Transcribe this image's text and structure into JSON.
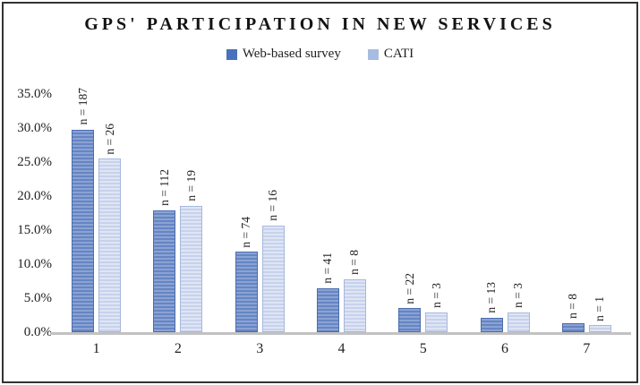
{
  "chart_data": {
    "type": "bar",
    "title": "GPS' PARTICIPATION IN NEW SERVICES",
    "categories": [
      "1",
      "2",
      "3",
      "4",
      "5",
      "6",
      "7"
    ],
    "series": [
      {
        "name": "Web-based survey",
        "values": [
          29.8,
          17.9,
          11.8,
          6.5,
          3.5,
          2.1,
          1.3
        ],
        "bar_labels": [
          "n = 187",
          "n = 112",
          "n = 74",
          "n = 41",
          "n = 22",
          "n = 13",
          "n = 8"
        ],
        "legend_color": "#4a72bc"
      },
      {
        "name": "CATI",
        "values": [
          25.5,
          18.6,
          15.7,
          7.8,
          2.9,
          2.9,
          1.0
        ],
        "bar_labels": [
          "n = 26",
          "n = 19",
          "n = 16",
          "n = 8",
          "n = 3",
          "n = 3",
          "n = 1"
        ],
        "legend_color": "#a8bce1"
      }
    ],
    "xlabel": "",
    "ylabel": "",
    "ylim": [
      0,
      35
    ],
    "yticks": [
      "0.0%",
      "5.0%",
      "10.0%",
      "15.0%",
      "20.0%",
      "25.0%",
      "30.0%",
      "35.0%"
    ],
    "grid": false,
    "legend_position": "top-center",
    "colors": {
      "series1_stripe_light": "#8ba3d3",
      "series1_stripe_dark": "#6585c4",
      "series1_border": "#4a6cae",
      "series2_stripe_light": "#dfe5f4",
      "series2_stripe_dark": "#c7d2ec",
      "series2_border": "#a6b8de",
      "axis_line": "#c2c2c2",
      "text": "#1f1f1f"
    }
  }
}
